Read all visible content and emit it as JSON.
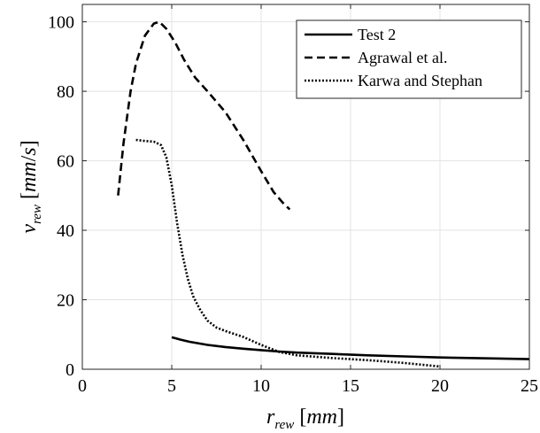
{
  "chart_data": {
    "type": "line",
    "title": "",
    "xlabel": "r_rew [mm]",
    "ylabel": "v_rew [mm/s]",
    "xlim": [
      0,
      25
    ],
    "ylim": [
      0,
      105
    ],
    "xticks": [
      0,
      5,
      10,
      15,
      20,
      25
    ],
    "yticks": [
      0,
      20,
      40,
      60,
      80,
      100
    ],
    "grid": true,
    "legend_position": "top-right",
    "series": [
      {
        "name": "Test 2",
        "style": "solid",
        "color": "#000000",
        "x": [
          5.0,
          5.5,
          6.0,
          7.0,
          8.0,
          9.0,
          10.0,
          11.0,
          12.0,
          14.0,
          16.0,
          18.0,
          20.0,
          22.0,
          25.0
        ],
        "y": [
          9.2,
          8.5,
          7.9,
          7.0,
          6.4,
          5.9,
          5.5,
          5.1,
          4.8,
          4.4,
          4.0,
          3.7,
          3.4,
          3.2,
          2.9
        ]
      },
      {
        "name": "Agrawal et al.",
        "style": "dashed",
        "color": "#000000",
        "x": [
          2.0,
          2.3,
          2.7,
          3.0,
          3.5,
          4.0,
          4.3,
          4.7,
          5.2,
          5.7,
          6.3,
          7.0,
          8.0,
          9.0,
          10.0,
          10.7,
          11.2,
          11.6
        ],
        "y": [
          50,
          65,
          80,
          88,
          96,
          99.5,
          100,
          98,
          94,
          89,
          84,
          80,
          74,
          66,
          57,
          51,
          48,
          46
        ]
      },
      {
        "name": "Karwa and Stephan",
        "style": "dotted",
        "color": "#000000",
        "x": [
          3.0,
          3.5,
          4.0,
          4.4,
          4.7,
          5.0,
          5.3,
          5.6,
          5.9,
          6.2,
          6.6,
          7.0,
          7.5,
          8.0,
          9.0,
          10.0,
          11.0,
          12.0,
          14.0,
          16.0,
          18.0,
          20.0
        ],
        "y": [
          66,
          65.7,
          65.5,
          64.5,
          61,
          53,
          42,
          33,
          26,
          21,
          17,
          14,
          12,
          11,
          9.3,
          7.0,
          5.0,
          4.0,
          3.2,
          2.6,
          1.8,
          0.8
        ]
      }
    ]
  }
}
